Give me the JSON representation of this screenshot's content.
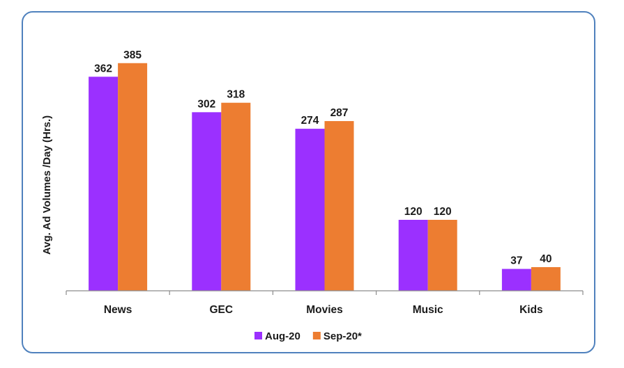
{
  "chart_data": {
    "type": "bar",
    "categories": [
      "News",
      "GEC",
      "Movies",
      "Music",
      "Kids"
    ],
    "series": [
      {
        "name": "Aug-20",
        "values": [
          362,
          302,
          274,
          120,
          37
        ],
        "color": "#9b30ff"
      },
      {
        "name": "Sep-20*",
        "values": [
          385,
          318,
          287,
          120,
          40
        ],
        "color": "#ed7d31"
      }
    ],
    "ylabel": "Avg. Ad Volumes /Day (Hrs.)",
    "xlabel": "",
    "ylim": [
      0,
      420
    ],
    "grid": false,
    "legend_position": "bottom",
    "data_labels": true
  }
}
